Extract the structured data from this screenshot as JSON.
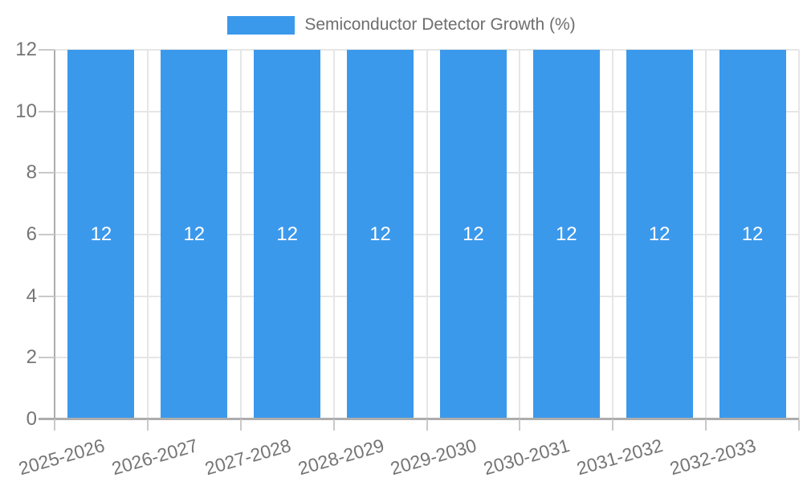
{
  "legend": {
    "label": "Semiconductor Detector Growth (%)"
  },
  "colors": {
    "bar": "#3B99EC",
    "grid": "#E6E6E6",
    "axis": "#ADADAD",
    "tick": "#C9C9C9",
    "axis_text": "#757575",
    "legend_text": "#6E6E6E",
    "value_text": "#FFFFFF",
    "background": "#FFFFFF"
  },
  "chart_data": {
    "type": "bar",
    "title": "Semiconductor Detector Growth (%)",
    "categories": [
      "2025-2026",
      "2026-2027",
      "2027-2028",
      "2028-2029",
      "2029-2030",
      "2030-2031",
      "2031-2032",
      "2032-2033"
    ],
    "values": [
      12,
      12,
      12,
      12,
      12,
      12,
      12,
      12
    ],
    "value_labels": [
      "12",
      "12",
      "12",
      "12",
      "12",
      "12",
      "12",
      "12"
    ],
    "xlabel": "",
    "ylabel": "",
    "ylim": [
      0,
      12
    ],
    "yticks": [
      0,
      2,
      4,
      6,
      8,
      10,
      12
    ],
    "grid": true,
    "legend_position": "top",
    "bar_value_labels_inside": true,
    "x_label_rotation_deg": -16
  }
}
